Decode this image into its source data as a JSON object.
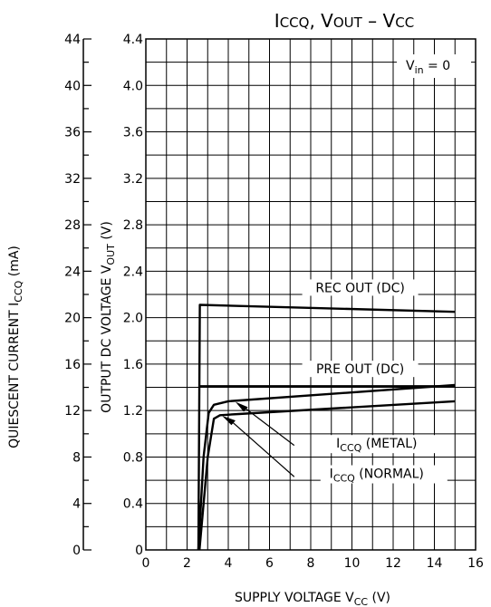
{
  "chart_data": {
    "type": "line",
    "title": {
      "i": "I",
      "ccq": "CCQ",
      "comma": ", V",
      "out": "OUT",
      "dash": "  –  V",
      "cc": "CC"
    },
    "xlabel": {
      "main": "SUPPLY VOLTAGE   V",
      "sub": "CC",
      "unit": "  (V)"
    },
    "ylabel_left": {
      "main": "QUIESCENT CURRENT   I",
      "sub": "CCQ",
      "unit": "   (mA)"
    },
    "ylabel_right": {
      "main": "OUTPUT DC VOLTAGE   V",
      "sub": "OUT",
      "unit": "   (V)"
    },
    "xlim": [
      0,
      16
    ],
    "ylim_right": [
      0,
      4.4
    ],
    "ylim_left": [
      0,
      44
    ],
    "x_ticks": [
      "0",
      "2",
      "4",
      "6",
      "8",
      "10",
      "12",
      "14",
      "16"
    ],
    "y_ticks_right": [
      "0",
      "0.4",
      "0.8",
      "1.2",
      "1.6",
      "2.0",
      "2.4",
      "2.8",
      "3.2",
      "3.6",
      "4.0",
      "4.4"
    ],
    "y_ticks_left": [
      "0",
      "4",
      "8",
      "12",
      "16",
      "20",
      "24",
      "28",
      "32",
      "36",
      "40",
      "44"
    ],
    "grid": true,
    "condition": {
      "main": "V",
      "sub": "in",
      "rest": " = 0"
    },
    "series": [
      {
        "axis": "right",
        "points": [
          [
            2.55,
            0
          ],
          [
            2.62,
            2.11
          ],
          [
            15,
            2.05
          ]
        ]
      },
      {
        "axis": "right",
        "points": [
          [
            2.55,
            1.41
          ],
          [
            15,
            1.41
          ]
        ]
      },
      {
        "axis": "left",
        "points": [
          [
            2.55,
            0
          ],
          [
            2.8,
            8
          ],
          [
            3.05,
            11.8
          ],
          [
            3.3,
            12.5
          ],
          [
            4,
            12.8
          ],
          [
            15,
            14.2
          ]
        ]
      },
      {
        "axis": "left",
        "points": [
          [
            2.6,
            0
          ],
          [
            3.0,
            8
          ],
          [
            3.3,
            11.3
          ],
          [
            3.6,
            11.6
          ],
          [
            4.5,
            11.7
          ],
          [
            15,
            12.8
          ]
        ]
      }
    ],
    "annotations": [
      {
        "text": "REC OUT (DC)",
        "at": [
          10.4,
          2.22
        ]
      },
      {
        "text": "PRE OUT (DC)",
        "at": [
          10.4,
          1.52
        ]
      },
      {
        "main": "I",
        "sub": "CCQ",
        "rest": " (METAL)",
        "at": [
          11.2,
          0.88
        ]
      },
      {
        "main": "I",
        "sub": "CCQ",
        "rest": " (NORMAL)",
        "at": [
          11.2,
          0.62
        ]
      }
    ]
  }
}
